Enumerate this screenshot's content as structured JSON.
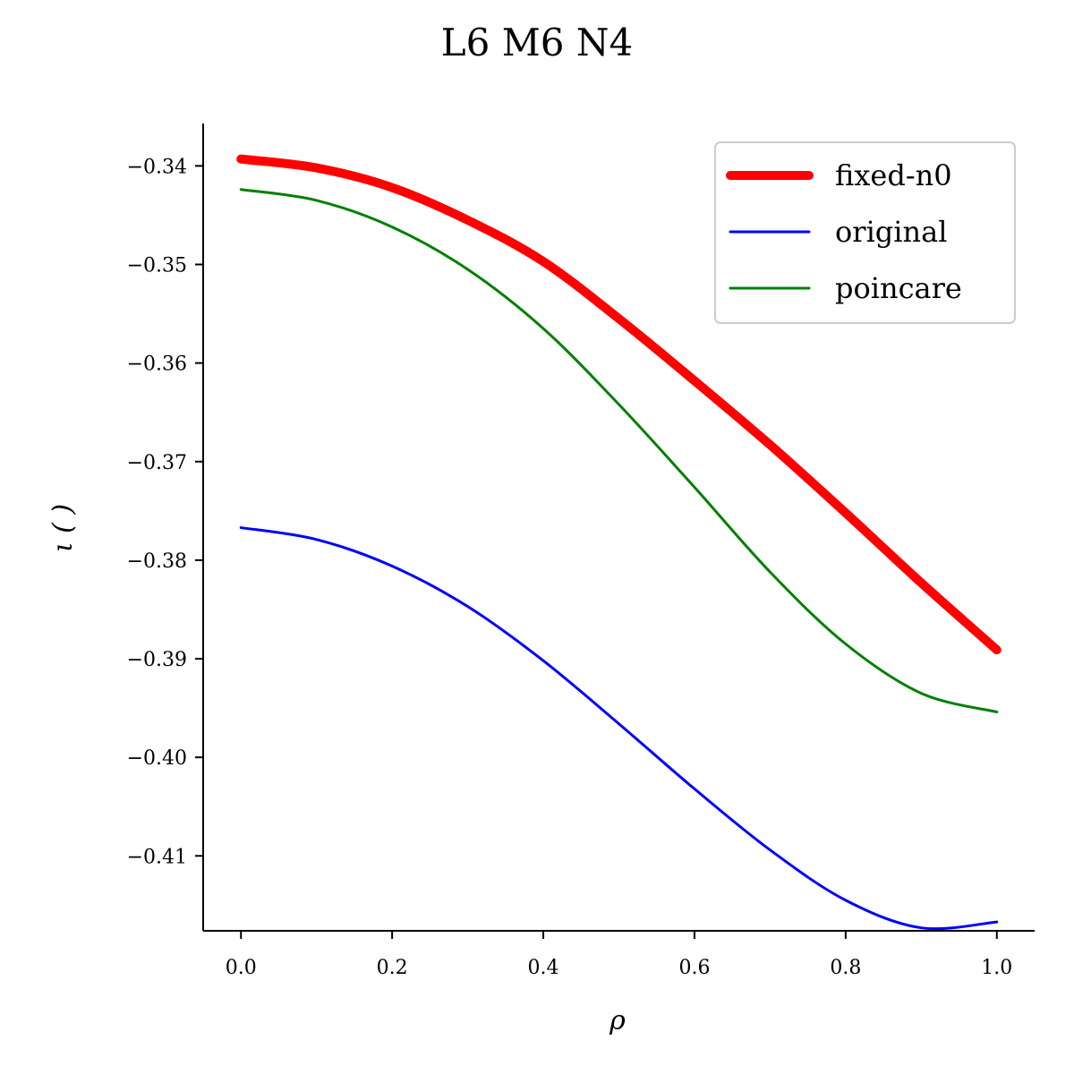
{
  "chart_data": {
    "type": "line",
    "title": "L6 M6 N4",
    "xlabel": "ρ",
    "ylabel": "ι ( )",
    "xlim": [
      -0.05,
      1.05
    ],
    "ylim": [
      -0.4176,
      -0.3357
    ],
    "xticks": [
      0.0,
      0.2,
      0.4,
      0.6,
      0.8,
      1.0
    ],
    "xtick_labels": [
      "0.0",
      "0.2",
      "0.4",
      "0.6",
      "0.8",
      "1.0"
    ],
    "yticks": [
      -0.34,
      -0.35,
      -0.36,
      -0.37,
      -0.38,
      -0.39,
      -0.4,
      -0.41
    ],
    "ytick_labels": [
      "−0.34",
      "−0.35",
      "−0.36",
      "−0.37",
      "−0.38",
      "−0.39",
      "−0.40",
      "−0.41"
    ],
    "grid": false,
    "legend": "top-right",
    "x": [
      0.0,
      0.1,
      0.2,
      0.3,
      0.4,
      0.5,
      0.6,
      0.7,
      0.8,
      0.9,
      1.0
    ],
    "series": [
      {
        "name": "fixed-n0",
        "color": "#ff0000",
        "width": "thick",
        "values": [
          -0.3393,
          -0.3402,
          -0.3422,
          -0.3455,
          -0.3497,
          -0.3555,
          -0.3618,
          -0.3683,
          -0.3752,
          -0.3823,
          -0.3891
        ]
      },
      {
        "name": "original",
        "color": "#0000ff",
        "width": "thin",
        "values": [
          -0.3767,
          -0.3779,
          -0.3806,
          -0.3847,
          -0.3902,
          -0.3966,
          -0.4032,
          -0.4094,
          -0.4145,
          -0.4173,
          -0.4167
        ]
      },
      {
        "name": "poincare",
        "color": "#008000",
        "width": "thin",
        "values": [
          -0.3424,
          -0.3435,
          -0.3462,
          -0.3505,
          -0.3565,
          -0.3642,
          -0.3726,
          -0.3812,
          -0.3885,
          -0.3935,
          -0.3954
        ]
      }
    ]
  }
}
